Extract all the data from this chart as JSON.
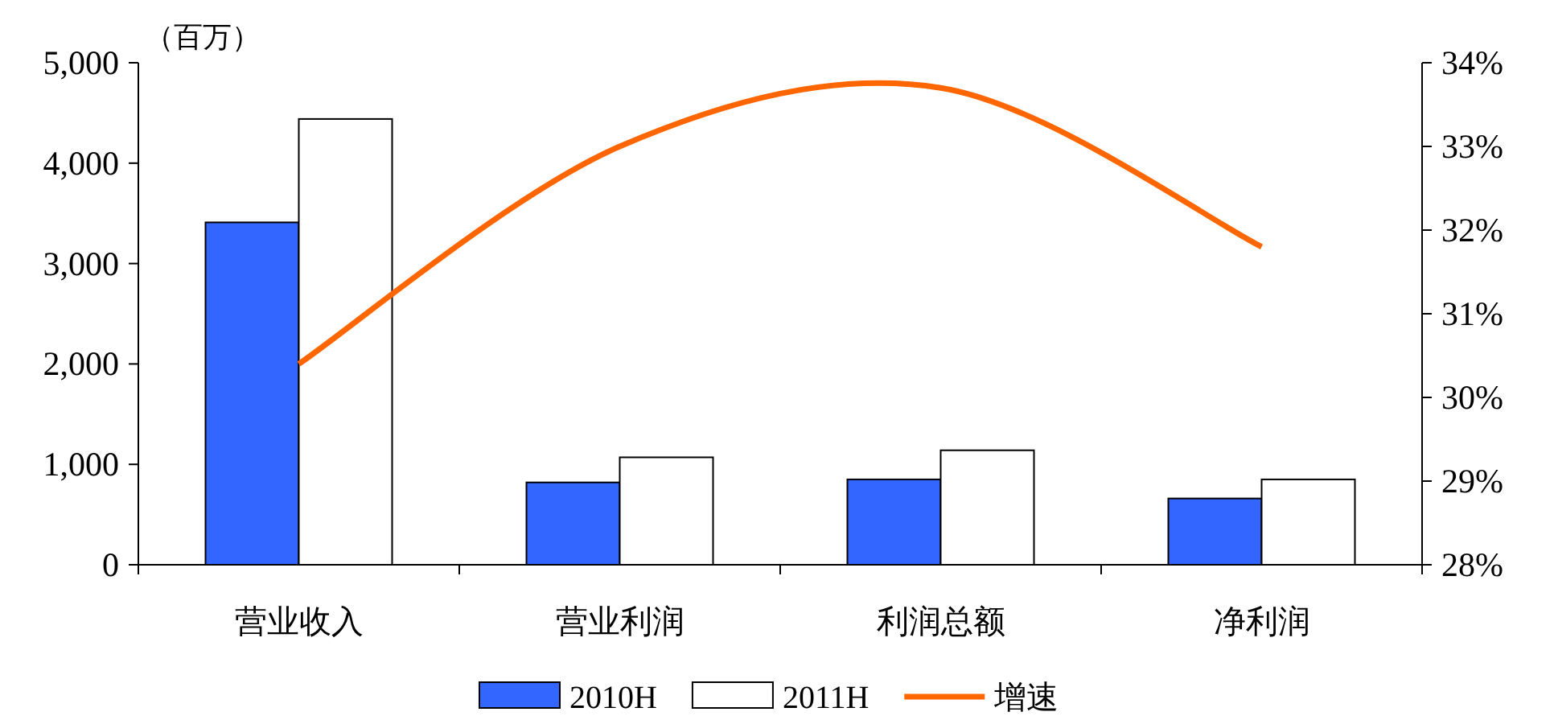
{
  "chart_data": {
    "type": "bar",
    "ylabel": "（百万）",
    "categories": [
      "营业收入",
      "营业利润",
      "利润总额",
      "净利润"
    ],
    "series": [
      {
        "name": "2010H",
        "color": "#3366ff",
        "values": [
          3410,
          820,
          850,
          660
        ]
      },
      {
        "name": "2011H",
        "color": "#ffffff",
        "values": [
          4440,
          1070,
          1140,
          850
        ]
      },
      {
        "name": "增速",
        "type": "line",
        "axis": "y2",
        "color": "#ff6600",
        "values": [
          30.4,
          33.0,
          33.7,
          31.8
        ]
      }
    ],
    "ylim": [
      0,
      5000
    ],
    "yticks": [
      {
        "value": 0,
        "label": "0"
      },
      {
        "value": 1000,
        "label": "1,000"
      },
      {
        "value": 2000,
        "label": "2,000"
      },
      {
        "value": 3000,
        "label": "3,000"
      },
      {
        "value": 4000,
        "label": "4,000"
      },
      {
        "value": 5000,
        "label": "5,000"
      }
    ],
    "y2lim": [
      28,
      34
    ],
    "y2ticks": [
      {
        "value": 28,
        "label": "28%"
      },
      {
        "value": 29,
        "label": "29%"
      },
      {
        "value": 30,
        "label": "30%"
      },
      {
        "value": 31,
        "label": "31%"
      },
      {
        "value": 32,
        "label": "32%"
      },
      {
        "value": 33,
        "label": "33%"
      },
      {
        "value": 34,
        "label": "34%"
      }
    ],
    "legend": "bottom",
    "grid": false
  }
}
